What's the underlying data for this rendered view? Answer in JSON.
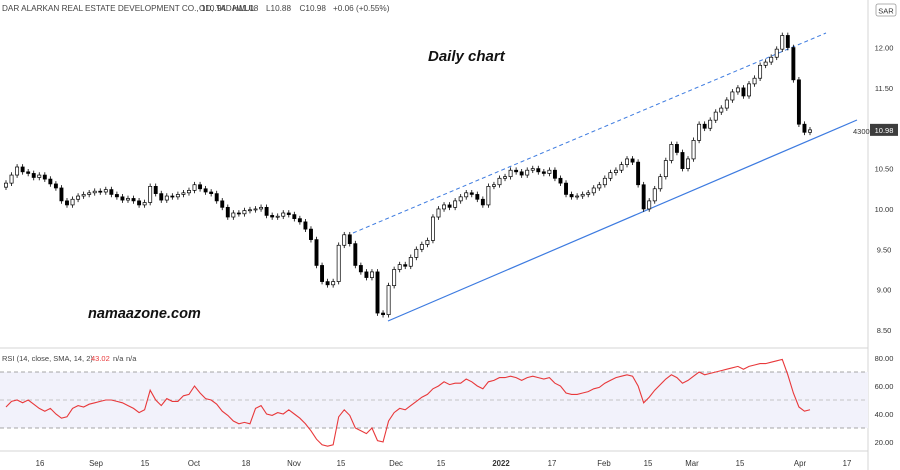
{
  "header": {
    "symbol_line": "DAR ALARKAN REAL ESTATE DEVELOPMENT CO., 1D, TADAWUL",
    "ohlc": [
      {
        "label": "O",
        "value": "10.94"
      },
      {
        "label": "H",
        "value": "11.08"
      },
      {
        "label": "L",
        "value": "10.88"
      },
      {
        "label": "C",
        "value": "10.98"
      },
      {
        "label": "",
        "value": "+0.06 (+0.55%)"
      }
    ],
    "currency_badge": "SAR"
  },
  "annotations": {
    "chart_title": "Daily chart",
    "watermark": "namaazone.com",
    "level_label": "4300"
  },
  "rsi": {
    "label": "RSI (14, close, SMA, 14, 2)",
    "value": "43.02",
    "na1": "n/a",
    "na2": "n/a"
  },
  "colors": {
    "price_line": "#3d7be0",
    "rsi_line": "#e8383a",
    "bull_fill": "#ffffff",
    "bear_fill": "#000000",
    "last_value": "#3d3d3d"
  },
  "chart_data": [
    {
      "type": "candlestick",
      "title": "Daily chart",
      "x_tick_labels": [
        "16",
        "Sep",
        "15",
        "Oct",
        "18",
        "Nov",
        "15",
        "Dec",
        "15",
        "2022",
        "17",
        "Feb",
        "15",
        "Mar",
        "15",
        "Apr",
        "17"
      ],
      "y_ticks": [
        8.5,
        9.0,
        9.5,
        10.0,
        10.5,
        10.98,
        11.5,
        12.0
      ],
      "ylim": [
        8.35,
        12.45
      ],
      "series": [
        {
          "values": [
            10.32,
            10.42,
            10.52,
            10.46,
            10.44,
            10.39,
            10.42,
            10.37,
            10.31,
            10.26,
            10.1,
            10.05,
            10.12,
            10.16,
            10.18,
            10.2,
            10.22,
            10.21,
            10.24,
            10.18,
            10.15,
            10.11,
            10.13,
            10.1,
            10.05,
            10.08,
            10.28,
            10.19,
            10.11,
            10.16,
            10.15,
            10.18,
            10.2,
            10.23,
            10.3,
            10.25,
            10.21,
            10.19,
            10.1,
            10.02,
            9.9,
            9.95,
            9.94,
            9.98,
            9.99,
            10.0,
            10.02,
            9.92,
            9.9,
            9.91,
            9.95,
            9.93,
            9.88,
            9.84,
            9.75,
            9.62,
            9.3,
            9.1,
            9.06,
            9.1,
            9.55,
            9.68,
            9.57,
            9.3,
            9.22,
            9.15,
            9.22,
            8.71,
            8.69,
            9.05,
            9.25,
            9.31,
            9.29,
            9.4,
            9.5,
            9.56,
            9.61,
            9.9,
            10.0,
            10.05,
            10.02,
            10.1,
            10.15,
            10.2,
            10.18,
            10.12,
            10.05,
            10.28,
            10.3,
            10.38,
            10.4,
            10.48,
            10.46,
            10.42,
            10.48,
            10.5,
            10.46,
            10.44,
            10.48,
            10.38,
            10.32,
            10.18,
            10.15,
            10.16,
            10.18,
            10.2,
            10.26,
            10.3,
            10.38,
            10.45,
            10.48,
            10.55,
            10.62,
            10.58,
            10.3,
            10.0,
            10.1,
            10.25,
            10.4,
            10.6,
            10.8,
            10.7,
            10.5,
            10.62,
            10.85,
            11.05,
            11.0,
            11.1,
            11.2,
            11.25,
            11.35,
            11.45,
            11.5,
            11.4,
            11.55,
            11.62,
            11.78,
            11.82,
            11.88,
            11.98,
            12.15,
            12.0,
            11.6,
            11.05,
            10.95,
            10.98
          ]
        }
      ]
    },
    {
      "type": "line",
      "title": "RSI (14, close, SMA, 14, 2)",
      "y_ticks": [
        20.0,
        40.0,
        60.0,
        80.0
      ],
      "ylim": [
        15,
        83
      ],
      "series": [
        {
          "name": "RSI",
          "values": [
            45,
            49,
            50,
            48,
            50,
            47,
            44,
            42,
            44,
            40,
            37,
            38,
            44,
            46,
            45,
            47,
            48,
            49,
            50,
            50,
            49,
            48,
            46,
            44,
            41,
            43,
            57,
            50,
            46,
            51,
            49,
            49,
            53,
            54,
            60,
            55,
            51,
            50,
            47,
            42,
            39,
            35,
            33,
            34,
            33,
            44,
            46,
            40,
            39,
            41,
            40,
            43,
            40,
            37,
            33,
            28,
            22,
            18,
            17,
            18,
            38,
            43,
            39,
            30,
            28,
            26,
            30,
            21,
            20,
            35,
            41,
            44,
            43,
            46,
            49,
            52,
            54,
            58,
            60,
            63,
            61,
            62,
            62,
            65,
            63,
            60,
            58,
            63,
            64,
            66,
            66,
            67,
            66,
            64,
            66,
            67,
            66,
            65,
            66,
            62,
            60,
            55,
            54,
            54,
            55,
            56,
            58,
            59,
            62,
            64,
            66,
            67,
            68,
            67,
            60,
            48,
            52,
            57,
            61,
            65,
            68,
            66,
            62,
            64,
            67,
            70,
            68,
            69,
            70,
            71,
            72,
            73,
            74,
            72,
            74,
            75,
            76,
            76,
            77,
            78,
            79,
            68,
            55,
            45,
            42,
            43.02
          ]
        }
      ]
    }
  ]
}
